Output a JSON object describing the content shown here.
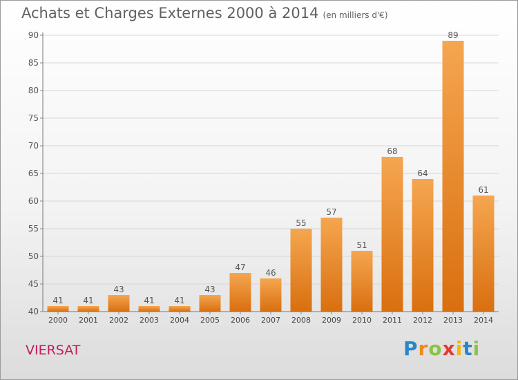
{
  "header": {
    "title": "Achats et Charges Externes 2000 à 2014",
    "subtitle": "(en milliers d'€)"
  },
  "place_label": "VIERSAT",
  "logo": {
    "text": "Proxiti",
    "letters": [
      {
        "ch": "P",
        "color": "#2a86c9"
      },
      {
        "ch": "r",
        "color": "#f08a1c"
      },
      {
        "ch": "o",
        "color": "#8bc540"
      },
      {
        "ch": "x",
        "color": "#e53935"
      },
      {
        "ch": "i",
        "color": "#f5b800"
      },
      {
        "ch": "t",
        "color": "#2a86c9"
      },
      {
        "ch": "i",
        "color": "#8bc540"
      }
    ]
  },
  "chart_data": {
    "type": "bar",
    "categories": [
      "2000",
      "2001",
      "2002",
      "2003",
      "2004",
      "2005",
      "2006",
      "2007",
      "2008",
      "2009",
      "2010",
      "2011",
      "2012",
      "2013",
      "2014"
    ],
    "values": [
      41,
      41,
      43,
      41,
      41,
      43,
      47,
      46,
      55,
      57,
      51,
      68,
      64,
      89,
      61
    ],
    "ylim": [
      40,
      90
    ],
    "yticks": [
      40,
      45,
      50,
      55,
      60,
      65,
      70,
      75,
      80,
      85,
      90
    ],
    "grid": true,
    "bar_color_top": "#f5a650",
    "bar_color_bottom": "#d96f0f"
  }
}
